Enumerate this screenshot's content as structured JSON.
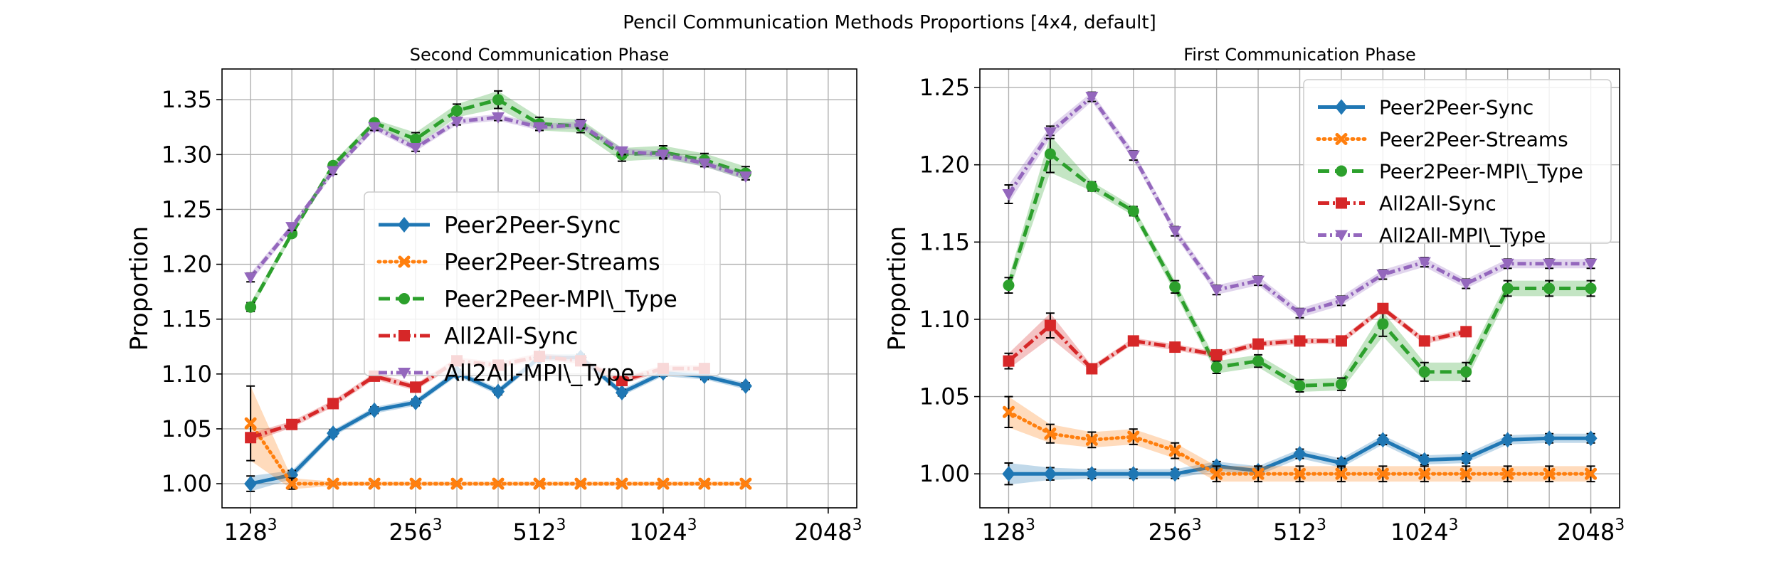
{
  "figure": {
    "title": "Pencil Communication Methods Proportions [4x4, default]"
  },
  "chart_data": [
    {
      "type": "line",
      "title": "Second Communication Phase",
      "ylabel": "Proportion",
      "x": [
        1,
        2,
        3,
        4,
        5,
        6,
        7,
        8,
        9,
        10,
        11,
        12,
        13,
        14,
        15
      ],
      "xticks": [
        {
          "x": 1,
          "label": "128",
          "sup": "3"
        },
        {
          "x": 5,
          "label": "256",
          "sup": "3"
        },
        {
          "x": 8,
          "label": "512",
          "sup": "3"
        },
        {
          "x": 11,
          "label": "1024",
          "sup": "3"
        },
        {
          "x": 15,
          "label": "2048",
          "sup": "3"
        }
      ],
      "ylim": [
        0.978,
        1.378
      ],
      "yticks": [
        1.0,
        1.05,
        1.1,
        1.15,
        1.2,
        1.25,
        1.3,
        1.35
      ],
      "ytick_labels": [
        "1.00",
        "1.05",
        "1.10",
        "1.15",
        "1.20",
        "1.25",
        "1.30",
        "1.35"
      ],
      "grid": true,
      "legend": "center",
      "legend_font": 32,
      "series": [
        {
          "name": "Peer2Peer-Sync",
          "color": "#1f77b4",
          "dash": "",
          "marker": "diamond",
          "values": [
            1.0,
            1.008,
            1.046,
            1.067,
            1.074,
            1.101,
            1.084,
            1.115,
            1.115,
            1.083,
            1.101,
            1.098,
            1.089,
            null,
            null
          ],
          "err": [
            0.007,
            0.004,
            0.003,
            0.003,
            0.003,
            0.003,
            0.003,
            0.003,
            0.003,
            0.003,
            0.003,
            0.003,
            0.003,
            null,
            null
          ]
        },
        {
          "name": "Peer2Peer-Streams",
          "color": "#ff7f0e",
          "dash": "2,6",
          "marker": "x",
          "values": [
            1.055,
            1.0,
            1.0,
            1.0,
            1.0,
            1.0,
            1.0,
            1.0,
            1.0,
            1.0,
            1.0,
            1.0,
            1.0,
            null,
            null
          ],
          "err": [
            0.034,
            0.005,
            0.002,
            0.002,
            0.002,
            0.002,
            0.002,
            0.002,
            0.002,
            0.002,
            0.002,
            0.002,
            0.002,
            null,
            null
          ]
        },
        {
          "name": "Peer2Peer-MPI\\_Type",
          "color": "#2ca02c",
          "dash": "16,8",
          "marker": "circle",
          "values": [
            1.161,
            1.228,
            1.29,
            1.329,
            1.314,
            1.34,
            1.35,
            1.328,
            1.326,
            1.3,
            1.302,
            1.295,
            1.283,
            null,
            null
          ],
          "err": [
            0.004,
            0.003,
            0.003,
            0.003,
            0.006,
            0.006,
            0.008,
            0.006,
            0.006,
            0.006,
            0.006,
            0.006,
            0.006,
            null,
            null
          ]
        },
        {
          "name": "All2All-Sync",
          "color": "#d62728",
          "dash": "16,5,3,5",
          "marker": "square",
          "values": [
            1.042,
            1.054,
            1.073,
            1.098,
            1.088,
            1.112,
            1.108,
            1.116,
            1.112,
            1.094,
            1.105,
            1.105,
            null,
            null,
            null
          ],
          "err": [
            0.004,
            0.003,
            0.003,
            0.003,
            0.003,
            0.003,
            0.003,
            0.003,
            0.003,
            0.003,
            0.003,
            0.003,
            null,
            null,
            null
          ]
        },
        {
          "name": "All2All-MPI\\_Type",
          "color": "#9467bd",
          "dash": "12,5,3,5",
          "marker": "triangle",
          "values": [
            1.188,
            1.234,
            1.285,
            1.325,
            1.306,
            1.33,
            1.334,
            1.325,
            1.327,
            1.303,
            1.3,
            1.292,
            1.28,
            null,
            null
          ],
          "err": [
            0.004,
            0.003,
            0.003,
            0.003,
            0.003,
            0.003,
            0.003,
            0.003,
            0.003,
            0.003,
            0.003,
            0.003,
            0.003,
            null,
            null
          ]
        }
      ]
    },
    {
      "type": "line",
      "title": "First Communication Phase",
      "ylabel": "Proportion",
      "x": [
        1,
        2,
        3,
        4,
        5,
        6,
        7,
        8,
        9,
        10,
        11,
        12,
        13,
        14,
        15
      ],
      "xticks": [
        {
          "x": 1,
          "label": "128",
          "sup": "3"
        },
        {
          "x": 5,
          "label": "256",
          "sup": "3"
        },
        {
          "x": 8,
          "label": "512",
          "sup": "3"
        },
        {
          "x": 11,
          "label": "1024",
          "sup": "3"
        },
        {
          "x": 15,
          "label": "2048",
          "sup": "3"
        }
      ],
      "ylim": [
        0.978,
        1.262
      ],
      "yticks": [
        1.0,
        1.05,
        1.1,
        1.15,
        1.2,
        1.25
      ],
      "ytick_labels": [
        "1.00",
        "1.05",
        "1.10",
        "1.15",
        "1.20",
        "1.25"
      ],
      "grid": true,
      "legend": "top-right",
      "legend_font": 28,
      "series": [
        {
          "name": "Peer2Peer-Sync",
          "color": "#1f77b4",
          "dash": "",
          "marker": "diamond",
          "values": [
            1.0,
            1.0,
            1.0,
            1.0,
            1.0,
            1.005,
            1.002,
            1.013,
            1.007,
            1.022,
            1.009,
            1.01,
            1.022,
            1.023,
            1.023
          ],
          "err": [
            0.007,
            0.004,
            0.003,
            0.003,
            0.003,
            0.003,
            0.003,
            0.003,
            0.003,
            0.003,
            0.003,
            0.003,
            0.003,
            0.003,
            0.003
          ]
        },
        {
          "name": "Peer2Peer-Streams",
          "color": "#ff7f0e",
          "dash": "2,6",
          "marker": "x",
          "values": [
            1.04,
            1.026,
            1.022,
            1.024,
            1.015,
            1.0,
            1.0,
            1.0,
            1.0,
            1.0,
            1.0,
            1.0,
            1.0,
            1.0,
            1.0
          ],
          "err": [
            0.01,
            0.006,
            0.005,
            0.005,
            0.005,
            0.005,
            0.005,
            0.005,
            0.005,
            0.005,
            0.005,
            0.005,
            0.005,
            0.005,
            0.005
          ]
        },
        {
          "name": "Peer2Peer-MPI\\_Type",
          "color": "#2ca02c",
          "dash": "16,8",
          "marker": "circle",
          "values": [
            1.122,
            1.207,
            1.186,
            1.17,
            1.121,
            1.069,
            1.073,
            1.057,
            1.058,
            1.097,
            1.066,
            1.066,
            1.12,
            1.12,
            1.12
          ],
          "err": [
            0.005,
            0.012,
            0.003,
            0.003,
            0.004,
            0.004,
            0.004,
            0.004,
            0.004,
            0.008,
            0.006,
            0.006,
            0.005,
            0.005,
            0.005
          ]
        },
        {
          "name": "All2All-Sync",
          "color": "#d62728",
          "dash": "16,5,3,5",
          "marker": "square",
          "values": [
            1.073,
            1.096,
            1.068,
            1.086,
            1.082,
            1.077,
            1.084,
            1.086,
            1.086,
            1.107,
            1.086,
            1.092,
            null,
            null,
            null
          ],
          "err": [
            0.005,
            0.008,
            0.002,
            0.002,
            0.002,
            0.002,
            0.002,
            0.002,
            0.002,
            0.002,
            0.002,
            0.002,
            null,
            null,
            null
          ]
        },
        {
          "name": "All2All-MPI\\_Type",
          "color": "#9467bd",
          "dash": "12,5,3,5",
          "marker": "triangle",
          "values": [
            1.181,
            1.221,
            1.244,
            1.206,
            1.157,
            1.119,
            1.125,
            1.104,
            1.112,
            1.129,
            1.137,
            1.123,
            1.136,
            1.136,
            1.136
          ],
          "err": [
            0.006,
            0.004,
            0.003,
            0.003,
            0.003,
            0.003,
            0.003,
            0.003,
            0.003,
            0.003,
            0.003,
            0.003,
            0.003,
            0.003,
            0.003
          ]
        }
      ]
    }
  ]
}
